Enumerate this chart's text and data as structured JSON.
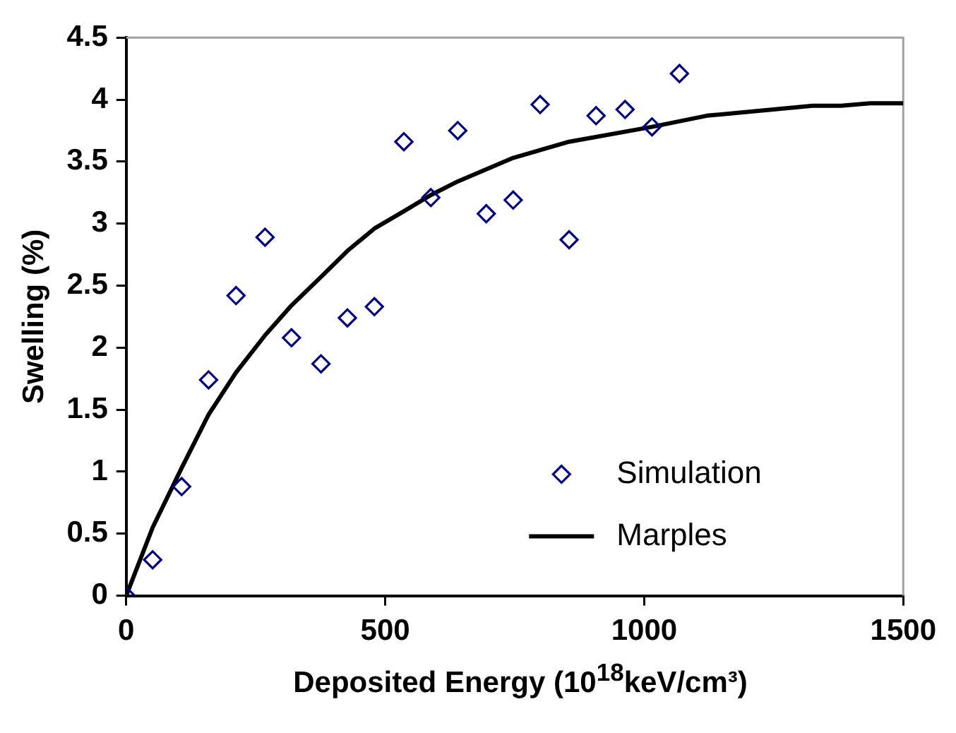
{
  "chart_data": {
    "type": "scatter",
    "xlabel": "Deposited Energy (10$^{18}$keV/cm³)",
    "ylabel": "Swelling (%)",
    "xlim": [
      0,
      1500
    ],
    "xticks": [
      0,
      500,
      1000,
      1500
    ],
    "ylim": [
      0,
      4.5
    ],
    "yticks": [
      0,
      0.5,
      1,
      1.5,
      2,
      2.5,
      3,
      3.5,
      4,
      4.5
    ],
    "grid": false,
    "legend": "bottom right",
    "series": [
      {
        "name": "Simulation",
        "marker": "diamond",
        "color": "#000080",
        "x": [
          0,
          51,
          107,
          159,
          212,
          268,
          319,
          376,
          427,
          479,
          536,
          588,
          640,
          695,
          747,
          799,
          855,
          907,
          963,
          1015,
          1068
        ],
        "values": [
          0,
          0.29,
          0.88,
          1.74,
          2.42,
          2.89,
          2.08,
          1.87,
          2.24,
          2.33,
          3.66,
          3.21,
          3.75,
          3.08,
          3.19,
          3.96,
          2.87,
          3.87,
          3.92,
          3.78,
          4.21
        ]
      },
      {
        "name": "Marples",
        "type": "line",
        "marker": "none",
        "line_style": "solid",
        "color": "#000000",
        "x": [
          0,
          51,
          107,
          159,
          212,
          268,
          319,
          376,
          427,
          479,
          536,
          588,
          640,
          747,
          855,
          1015,
          1121,
          1325,
          1380,
          1436,
          1500
        ],
        "values": [
          0,
          0.55,
          1.03,
          1.46,
          1.8,
          2.1,
          2.34,
          2.57,
          2.78,
          2.96,
          3.1,
          3.23,
          3.34,
          3.53,
          3.66,
          3.78,
          3.87,
          3.95,
          3.95,
          3.97,
          3.97
        ]
      }
    ]
  }
}
